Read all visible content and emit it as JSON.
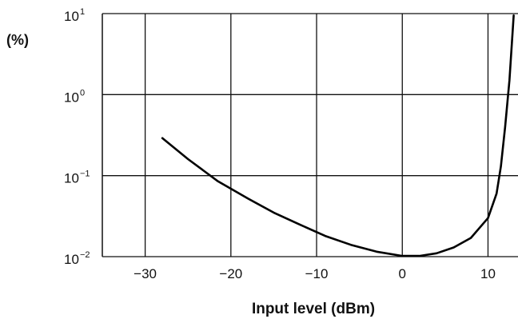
{
  "chart_data": {
    "type": "line",
    "xlabel": "Input level (dBm)",
    "ylabel": "(%)",
    "x_scale": "linear",
    "y_scale": "log",
    "xlim": [
      -35,
      13.5
    ],
    "ylim": [
      0.01,
      10
    ],
    "grid": true,
    "x_ticks": [
      {
        "value": -30,
        "label": "−30"
      },
      {
        "value": -20,
        "label": "−20"
      },
      {
        "value": -10,
        "label": "−10"
      },
      {
        "value": 0,
        "label": "0"
      },
      {
        "value": 10,
        "label": "10"
      }
    ],
    "y_ticks": [
      {
        "value": 10,
        "base": "10",
        "exp": "1"
      },
      {
        "value": 1,
        "base": "10",
        "exp": "0"
      },
      {
        "value": 0.1,
        "base": "10",
        "exp": "−1"
      },
      {
        "value": 0.01,
        "base": "10",
        "exp": "−2"
      }
    ],
    "series": [
      {
        "x": [
          -28,
          -25,
          -21.5,
          -18,
          -15,
          -12,
          -9,
          -6,
          -3,
          0,
          2,
          4,
          6,
          8,
          10,
          11,
          11.5,
          12,
          12.5,
          13
        ],
        "y": [
          0.29,
          0.16,
          0.085,
          0.052,
          0.035,
          0.025,
          0.018,
          0.014,
          0.0115,
          0.0102,
          0.0102,
          0.011,
          0.013,
          0.017,
          0.03,
          0.06,
          0.13,
          0.4,
          1.5,
          9.5
        ]
      }
    ]
  }
}
